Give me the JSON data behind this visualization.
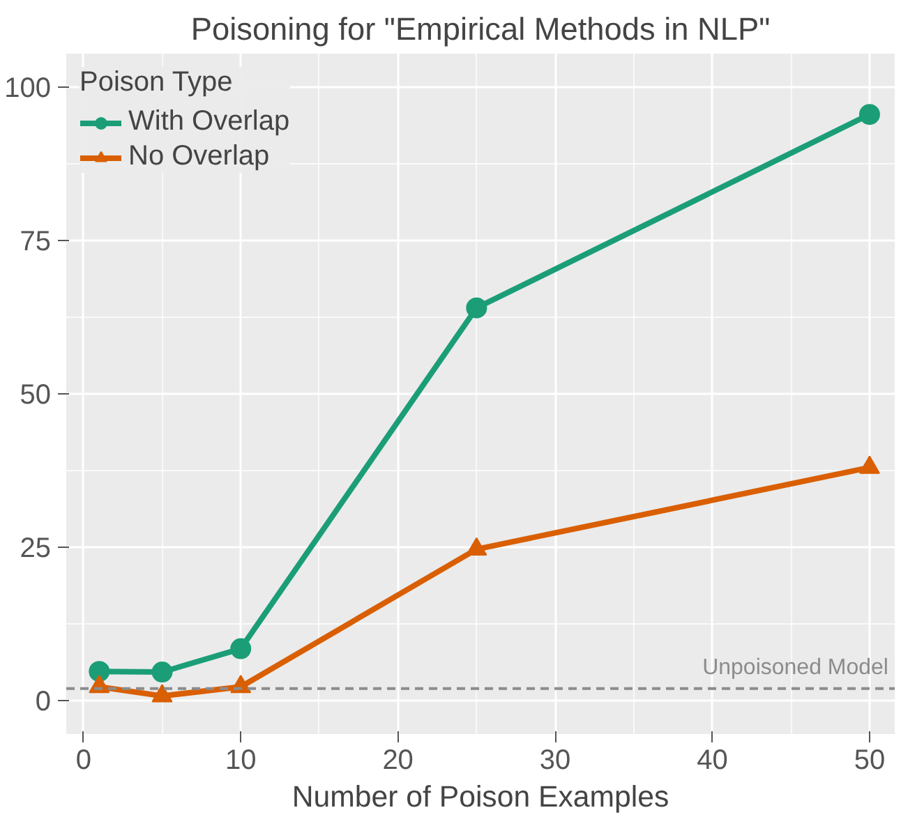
{
  "chart_data": {
    "type": "line",
    "title": "Poisoning for \"Empirical Methods in NLP\"",
    "xlabel": "Number of Poison Examples",
    "legend_title": "Poison Type",
    "x": [
      1,
      5,
      10,
      25,
      50
    ],
    "series": [
      {
        "name": "With Overlap",
        "color": "#1b9e77",
        "marker": "circle",
        "values": [
          4.8,
          4.7,
          8.5,
          64,
          95.5
        ]
      },
      {
        "name": "No Overlap",
        "color": "#d95f02",
        "marker": "triangle",
        "values": [
          2.3,
          0.8,
          2.3,
          24.7,
          38
        ]
      }
    ],
    "xlim": [
      -1.1,
      51.6
    ],
    "ylim": [
      -5.4,
      105.4
    ],
    "xticks": [
      0,
      10,
      20,
      30,
      40,
      50
    ],
    "yticks": [
      0,
      25,
      50,
      75,
      100
    ],
    "ref_lines": [
      {
        "axis": "y",
        "value": 2,
        "label": "Unpoisoned Model",
        "color": "#8c8c8c",
        "line_style": "dashed"
      }
    ],
    "grid": true,
    "legend": "top left"
  }
}
